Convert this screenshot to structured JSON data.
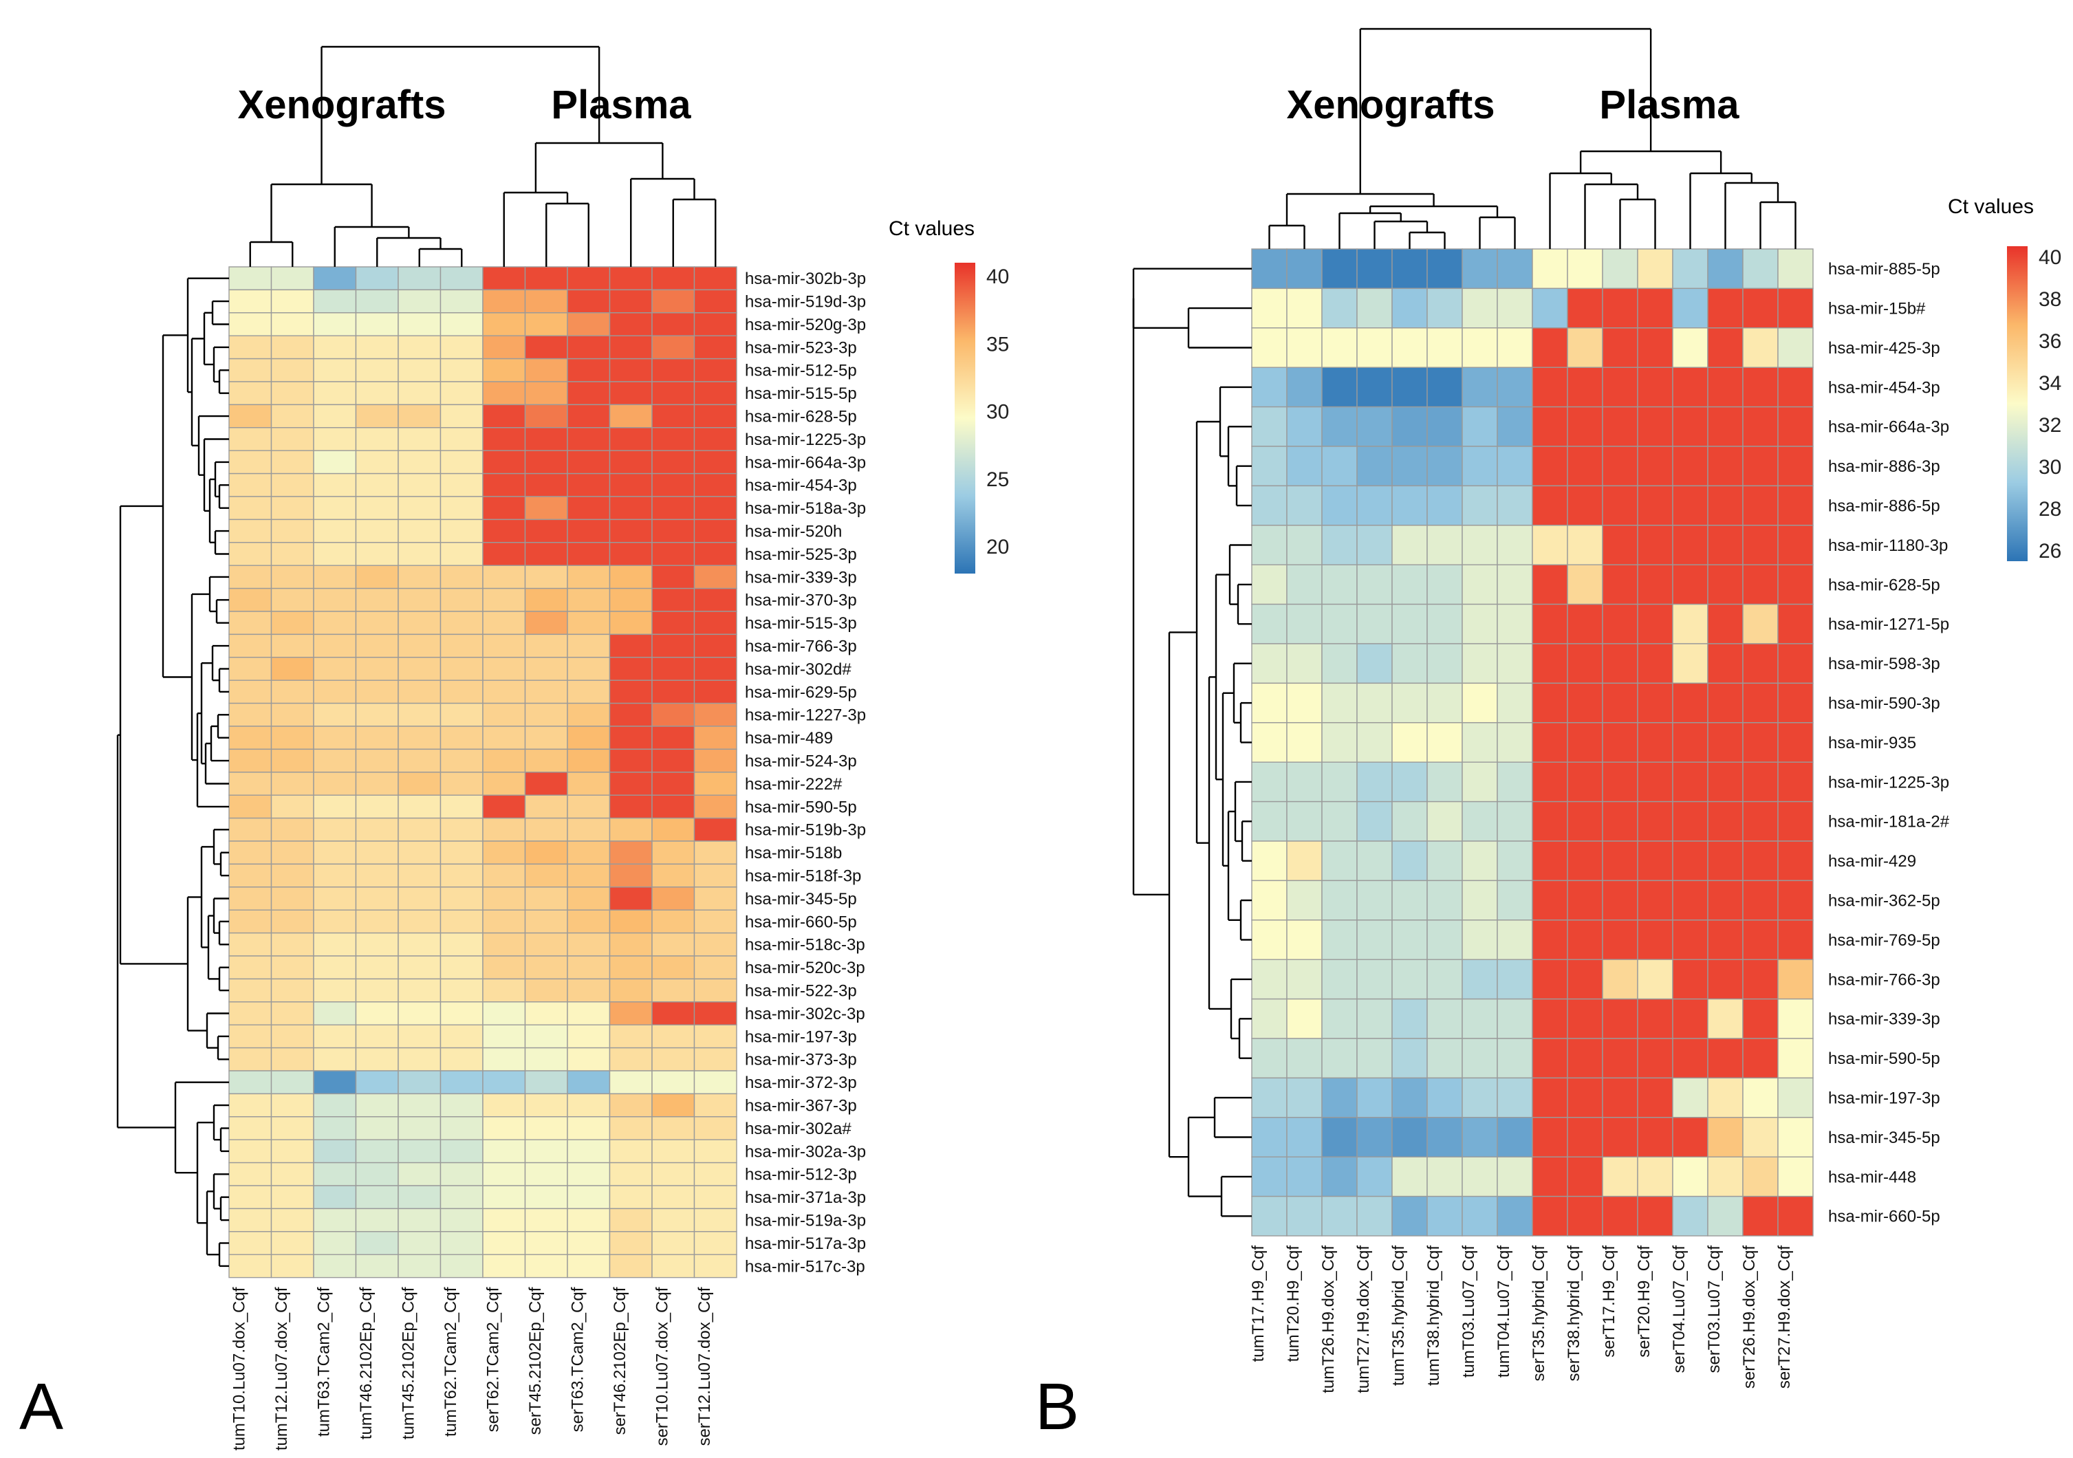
{
  "chart_data": [
    {
      "type": "heatmap",
      "panel_label": "A",
      "group_labels": [
        "Xenografts",
        "Plasma"
      ],
      "legend_title": "Ct values",
      "legend_ticks": [
        40,
        35,
        30,
        25,
        20
      ],
      "value_range": [
        18,
        41
      ],
      "columns": [
        "tumT10.Lu07.dox_Cqf",
        "tumT12.Lu07.dox_Cqf",
        "tumT63.TCam2_Cqf",
        "tumT46.2102Ep_Cqf",
        "tumT45.2102Ep_Cqf",
        "tumT62.TCam2_Cqf",
        "serT62.TCam2_Cqf",
        "serT45.2102Ep_Cqf",
        "serT63.TCam2_Cqf",
        "serT46.2102Ep_Cqf",
        "serT10.Lu07.dox_Cqf",
        "serT12.Lu07.dox_Cqf"
      ],
      "rows": [
        "hsa-mir-302b-3p",
        "hsa-mir-519d-3p",
        "hsa-mir-520g-3p",
        "hsa-mir-523-3p",
        "hsa-mir-512-5p",
        "hsa-mir-515-5p",
        "hsa-mir-628-5p",
        "hsa-mir-1225-3p",
        "hsa-mir-664a-3p",
        "hsa-mir-454-3p",
        "hsa-mir-518a-3p",
        "hsa-mir-520h",
        "hsa-mir-525-3p",
        "hsa-mir-339-3p",
        "hsa-mir-370-3p",
        "hsa-mir-515-3p",
        "hsa-mir-766-3p",
        "hsa-mir-302d#",
        "hsa-mir-629-5p",
        "hsa-mir-1227-3p",
        "hsa-mir-489",
        "hsa-mir-524-3p",
        "hsa-mir-222#",
        "hsa-mir-590-5p",
        "hsa-mir-519b-3p",
        "hsa-mir-518b",
        "hsa-mir-518f-3p",
        "hsa-mir-345-5p",
        "hsa-mir-660-5p",
        "hsa-mir-518c-3p",
        "hsa-mir-520c-3p",
        "hsa-mir-522-3p",
        "hsa-mir-302c-3p",
        "hsa-mir-197-3p",
        "hsa-mir-373-3p",
        "hsa-mir-372-3p",
        "hsa-mir-367-3p",
        "hsa-mir-302a#",
        "hsa-mir-302a-3p",
        "hsa-mir-512-3p",
        "hsa-mir-371a-3p",
        "hsa-mir-519a-3p",
        "hsa-mir-517a-3p",
        "hsa-mir-517c-3p"
      ],
      "values": [
        [
          28,
          28,
          22,
          25,
          26,
          26,
          40,
          40,
          40,
          40,
          40,
          40
        ],
        [
          30,
          30,
          27,
          27,
          28,
          28,
          36,
          36,
          40,
          40,
          38,
          40
        ],
        [
          30,
          30,
          29,
          29,
          29,
          29,
          35,
          35,
          37,
          40,
          40,
          40
        ],
        [
          32,
          32,
          31,
          31,
          31,
          31,
          36,
          40,
          40,
          40,
          38,
          40
        ],
        [
          32,
          32,
          31,
          31,
          31,
          31,
          35,
          36,
          40,
          40,
          40,
          40
        ],
        [
          32,
          32,
          31,
          31,
          31,
          31,
          36,
          36,
          40,
          40,
          40,
          40
        ],
        [
          34,
          32,
          31,
          33,
          33,
          31,
          40,
          38,
          40,
          36,
          40,
          40
        ],
        [
          32,
          32,
          31,
          31,
          31,
          31,
          40,
          40,
          40,
          40,
          40,
          40
        ],
        [
          32,
          32,
          29,
          31,
          31,
          31,
          40,
          40,
          40,
          40,
          40,
          40
        ],
        [
          32,
          32,
          31,
          31,
          31,
          31,
          40,
          40,
          40,
          40,
          40,
          40
        ],
        [
          32,
          32,
          31,
          31,
          31,
          31,
          40,
          37,
          40,
          40,
          40,
          40
        ],
        [
          32,
          32,
          31,
          31,
          31,
          31,
          40,
          40,
          40,
          40,
          40,
          40
        ],
        [
          32,
          32,
          31,
          31,
          31,
          31,
          40,
          40,
          40,
          40,
          40,
          40
        ],
        [
          33,
          33,
          33,
          34,
          33,
          33,
          33,
          33,
          34,
          35,
          40,
          37
        ],
        [
          34,
          33,
          33,
          33,
          33,
          33,
          33,
          35,
          34,
          35,
          40,
          40
        ],
        [
          33,
          34,
          33,
          33,
          33,
          33,
          33,
          36,
          34,
          35,
          40,
          40
        ],
        [
          33,
          33,
          33,
          33,
          33,
          33,
          33,
          33,
          33,
          40,
          40,
          40
        ],
        [
          33,
          35,
          33,
          33,
          33,
          33,
          33,
          33,
          33,
          40,
          40,
          40
        ],
        [
          33,
          33,
          33,
          33,
          33,
          33,
          33,
          33,
          33,
          40,
          40,
          40
        ],
        [
          33,
          33,
          32,
          32,
          32,
          32,
          33,
          33,
          34,
          40,
          38,
          37
        ],
        [
          34,
          34,
          33,
          33,
          33,
          33,
          33,
          33,
          35,
          40,
          40,
          36
        ],
        [
          34,
          34,
          33,
          33,
          33,
          33,
          34,
          34,
          35,
          40,
          40,
          36
        ],
        [
          33,
          33,
          33,
          33,
          34,
          33,
          34,
          40,
          34,
          40,
          40,
          35
        ],
        [
          34,
          32,
          31,
          31,
          31,
          31,
          40,
          33,
          33,
          40,
          40,
          36
        ],
        [
          33,
          33,
          32,
          32,
          32,
          32,
          33,
          33,
          33,
          34,
          35,
          40
        ],
        [
          33,
          33,
          32,
          32,
          32,
          32,
          34,
          35,
          34,
          37,
          34,
          33
        ],
        [
          33,
          33,
          32,
          32,
          32,
          32,
          33,
          34,
          34,
          37,
          34,
          33
        ],
        [
          33,
          33,
          32,
          32,
          32,
          32,
          33,
          33,
          34,
          40,
          36,
          33
        ],
        [
          33,
          33,
          32,
          32,
          32,
          32,
          33,
          33,
          34,
          35,
          34,
          33
        ],
        [
          32,
          32,
          31,
          31,
          31,
          31,
          33,
          33,
          33,
          34,
          33,
          33
        ],
        [
          32,
          32,
          31,
          31,
          31,
          31,
          33,
          33,
          33,
          34,
          34,
          33
        ],
        [
          32,
          32,
          31,
          31,
          31,
          31,
          32,
          33,
          33,
          34,
          33,
          33
        ],
        [
          32,
          32,
          28,
          30,
          30,
          30,
          29,
          30,
          30,
          36,
          40,
          40
        ],
        [
          32,
          32,
          31,
          31,
          31,
          31,
          29,
          29,
          30,
          32,
          32,
          32
        ],
        [
          32,
          32,
          31,
          31,
          31,
          31,
          29,
          29,
          30,
          32,
          32,
          32
        ],
        [
          27,
          27,
          20,
          24,
          25,
          24,
          24,
          26,
          23,
          29,
          29,
          29
        ],
        [
          31,
          31,
          27,
          28,
          28,
          28,
          31,
          31,
          31,
          33,
          35,
          32
        ],
        [
          31,
          31,
          27,
          28,
          28,
          28,
          30,
          30,
          30,
          32,
          32,
          32
        ],
        [
          31,
          31,
          26,
          27,
          27,
          27,
          29,
          29,
          29,
          31,
          31,
          31
        ],
        [
          31,
          31,
          27,
          27,
          28,
          28,
          29,
          29,
          29,
          31,
          31,
          31
        ],
        [
          31,
          31,
          26,
          27,
          27,
          28,
          29,
          29,
          29,
          31,
          31,
          31
        ],
        [
          31,
          31,
          28,
          28,
          28,
          28,
          30,
          30,
          30,
          32,
          31,
          31
        ],
        [
          31,
          31,
          28,
          27,
          28,
          28,
          30,
          30,
          30,
          32,
          31,
          31
        ],
        [
          31,
          31,
          28,
          28,
          28,
          28,
          30,
          30,
          30,
          32,
          31,
          31
        ]
      ]
    },
    {
      "type": "heatmap",
      "panel_label": "B",
      "group_labels": [
        "Xenografts",
        "Plasma"
      ],
      "legend_title": "Ct values",
      "legend_ticks": [
        40,
        38,
        36,
        34,
        32,
        30,
        28,
        26
      ],
      "value_range": [
        25.5,
        40.5
      ],
      "columns": [
        "tumT17.H9_Cqf",
        "tumT20.H9_Cqf",
        "tumT26.H9.dox_Cqf",
        "tumT27.H9.dox_Cqf",
        "tumT35.hybrid_Cqf",
        "tumT38.hybrid_Cqf",
        "tumT03.Lu07_Cqf",
        "tumT04.Lu07_Cqf",
        "serT35.hybrid_Cqf",
        "serT38.hybrid_Cqf",
        "serT17.H9_Cqf",
        "serT20.H9_Cqf",
        "serT04.Lu07_Cqf",
        "serT03.Lu07_Cqf",
        "serT26.H9.dox_Cqf",
        "serT27.H9.dox_Cqf"
      ],
      "rows": [
        "hsa-mir-885-5p",
        "hsa-mir-15b#",
        "hsa-mir-425-3p",
        "hsa-mir-454-3p",
        "hsa-mir-664a-3p",
        "hsa-mir-886-3p",
        "hsa-mir-886-5p",
        "hsa-mir-1180-3p",
        "hsa-mir-628-5p",
        "hsa-mir-1271-5p",
        "hsa-mir-598-3p",
        "hsa-mir-590-3p",
        "hsa-mir-935",
        "hsa-mir-1225-3p",
        "hsa-mir-181a-2#",
        "hsa-mir-429",
        "hsa-mir-362-5p",
        "hsa-mir-769-5p",
        "hsa-mir-766-3p",
        "hsa-mir-339-3p",
        "hsa-mir-590-5p",
        "hsa-mir-197-3p",
        "hsa-mir-345-5p",
        "hsa-mir-448",
        "hsa-mir-660-5p"
      ],
      "values": [
        [
          27.5,
          27.5,
          26,
          26,
          26,
          26,
          28,
          28,
          33,
          33,
          31.5,
          34,
          30,
          28,
          30.5,
          32
        ],
        [
          33,
          33,
          30,
          31,
          29,
          30,
          32,
          32,
          29,
          40,
          40,
          40,
          29,
          40,
          40,
          40
        ],
        [
          33,
          33,
          33,
          33,
          33,
          33,
          33,
          33,
          40,
          35,
          40,
          40,
          33,
          40,
          34,
          32
        ],
        [
          29,
          28,
          26,
          26,
          26,
          26,
          28,
          28,
          40,
          40,
          40,
          40,
          40,
          40,
          40,
          40
        ],
        [
          30,
          29,
          28,
          28,
          27.5,
          27.5,
          29,
          28,
          40,
          40,
          40,
          40,
          40,
          40,
          40,
          40
        ],
        [
          30,
          29,
          29,
          28,
          28,
          28,
          29,
          29,
          40,
          40,
          40,
          40,
          40,
          40,
          40,
          40
        ],
        [
          30,
          30,
          29,
          29,
          29,
          29,
          30,
          30,
          40,
          40,
          40,
          40,
          40,
          40,
          40,
          40
        ],
        [
          31,
          31,
          30,
          30,
          32,
          32,
          32,
          32,
          34,
          34,
          40,
          40,
          40,
          40,
          40,
          40
        ],
        [
          32,
          31,
          31,
          31,
          31,
          31,
          32,
          32,
          40,
          35,
          40,
          40,
          40,
          40,
          40,
          40
        ],
        [
          31,
          31,
          31,
          31,
          31,
          31,
          32,
          32,
          40,
          40,
          40,
          40,
          34,
          40,
          35,
          40
        ],
        [
          32,
          32,
          31,
          30,
          31,
          31,
          32,
          32,
          40,
          40,
          40,
          40,
          34,
          40,
          40,
          40
        ],
        [
          33,
          33,
          32,
          32,
          32,
          32,
          33,
          32,
          40,
          40,
          40,
          40,
          40,
          40,
          40,
          40
        ],
        [
          33,
          33,
          32,
          32,
          33,
          33,
          32,
          32,
          40,
          40,
          40,
          40,
          40,
          40,
          40,
          40
        ],
        [
          31,
          31,
          31,
          30,
          30,
          31,
          32,
          31,
          40,
          40,
          40,
          40,
          40,
          40,
          40,
          40
        ],
        [
          31,
          31,
          31,
          30,
          31,
          32,
          31,
          31,
          40,
          40,
          40,
          40,
          40,
          40,
          40,
          40
        ],
        [
          33,
          34,
          31,
          31,
          30,
          31,
          32,
          31,
          40,
          40,
          40,
          40,
          40,
          40,
          40,
          40
        ],
        [
          33,
          32,
          31,
          31,
          31,
          31,
          32,
          31,
          40,
          40,
          40,
          40,
          40,
          40,
          40,
          40
        ],
        [
          33,
          33,
          31,
          31,
          31,
          31,
          32,
          32,
          40,
          40,
          40,
          40,
          40,
          40,
          40,
          40
        ],
        [
          32,
          32,
          31,
          31,
          31,
          31,
          30,
          30,
          40,
          40,
          35,
          34,
          40,
          40,
          40,
          36
        ],
        [
          32,
          33,
          31,
          31,
          30,
          31,
          31,
          31,
          40,
          40,
          40,
          40,
          40,
          34,
          40,
          33
        ],
        [
          31,
          31,
          31,
          31,
          30,
          31,
          31,
          31,
          40,
          40,
          40,
          40,
          40,
          40,
          40,
          33
        ],
        [
          30,
          30,
          28,
          29,
          28,
          29,
          30,
          30,
          40,
          40,
          40,
          40,
          32,
          34,
          33,
          32
        ],
        [
          29,
          29,
          27,
          27.5,
          27,
          27.5,
          28,
          27.5,
          40,
          40,
          40,
          40,
          40,
          36,
          34,
          33
        ],
        [
          29,
          29,
          28,
          29,
          32,
          32,
          32,
          32,
          40,
          40,
          34,
          34,
          33,
          34,
          35,
          33
        ],
        [
          30,
          30,
          30,
          30,
          28,
          29,
          29,
          28,
          40,
          40,
          40,
          40,
          30,
          31,
          40,
          40
        ]
      ]
    }
  ]
}
